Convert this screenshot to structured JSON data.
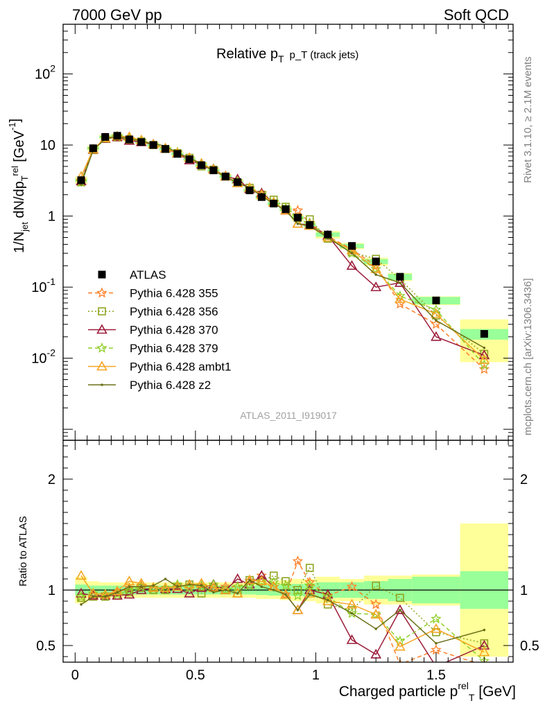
{
  "header": {
    "left": "7000 GeV pp",
    "right": "Soft QCD"
  },
  "side_labels": {
    "rivet": "Rivet 3.1.10, ≥ 2.1M events",
    "mcplots": "mcplots.cern.ch [arXiv:1306.3436]"
  },
  "reference_code": "ATLAS_2011_I919017",
  "chart_data": [
    {
      "type": "line",
      "panel": "main",
      "title": "Relative p_T (track jets)",
      "ylabel": "1/N_jet dN/dp_T^rel [GeV^-1]",
      "yscale": "log",
      "xlim": [
        -0.05,
        1.82
      ],
      "ylim": [
        0.0007,
        500
      ],
      "x": [
        0.025,
        0.075,
        0.125,
        0.175,
        0.225,
        0.275,
        0.325,
        0.375,
        0.425,
        0.475,
        0.525,
        0.575,
        0.625,
        0.675,
        0.725,
        0.775,
        0.825,
        0.875,
        0.925,
        0.975,
        1.05,
        1.15,
        1.25,
        1.35,
        1.5,
        1.7
      ],
      "yticks": [
        {
          "value": 0.01,
          "label": "10",
          "sup": "-2"
        },
        {
          "value": 0.1,
          "label": "10",
          "sup": "-1"
        },
        {
          "value": 1,
          "label": "1",
          "sup": ""
        },
        {
          "value": 10,
          "label": "10",
          "sup": ""
        },
        {
          "value": 100,
          "label": "10",
          "sup": "2"
        }
      ],
      "legend_position": "center-left",
      "series": [
        {
          "name": "ATLAS",
          "color": "#000000",
          "marker": "square-filled",
          "line": "none",
          "values": [
            3.2,
            9.0,
            13.0,
            13.5,
            12.0,
            11.0,
            10.0,
            8.8,
            7.5,
            6.3,
            5.2,
            4.4,
            3.6,
            3.0,
            2.3,
            1.85,
            1.5,
            1.25,
            0.95,
            0.75,
            0.55,
            0.38,
            0.23,
            0.14,
            0.065,
            0.022
          ]
        },
        {
          "name": "Pythia 6.428 355",
          "color": "#ff7f27",
          "marker": "star",
          "line": "dashed",
          "values": [
            3.0,
            8.6,
            12.5,
            13.2,
            12.2,
            11.4,
            10.2,
            8.9,
            7.8,
            6.5,
            5.3,
            4.5,
            3.7,
            3.1,
            2.5,
            2.1,
            1.55,
            1.2,
            1.2,
            0.8,
            0.52,
            0.34,
            0.2,
            0.058,
            0.03,
            0.007
          ]
        },
        {
          "name": "Pythia 6.428 356",
          "color": "#8fa41f",
          "marker": "square-open",
          "line": "dotted",
          "values": [
            3.0,
            8.5,
            12.2,
            12.8,
            11.8,
            11.2,
            10.0,
            8.8,
            7.7,
            6.6,
            5.0,
            4.5,
            3.6,
            2.9,
            2.5,
            2.0,
            1.7,
            1.35,
            0.95,
            0.9,
            0.48,
            0.31,
            0.25,
            0.13,
            0.04,
            0.0115
          ]
        },
        {
          "name": "Pythia 6.428 370",
          "color": "#9b1c3a",
          "marker": "triangle-open",
          "line": "solid",
          "values": [
            3.1,
            8.6,
            12.3,
            12.9,
            11.5,
            11.0,
            10.2,
            8.9,
            7.6,
            6.1,
            5.3,
            4.6,
            3.6,
            3.3,
            2.4,
            2.1,
            1.55,
            1.2,
            0.78,
            0.75,
            0.53,
            0.2,
            0.1,
            0.115,
            0.02,
            0.011
          ]
        },
        {
          "name": "Pythia 6.428 379",
          "color": "#8fcf28",
          "marker": "star",
          "line": "dashed",
          "values": [
            3.0,
            8.7,
            12.4,
            13.0,
            12.0,
            11.3,
            10.1,
            8.9,
            7.9,
            6.4,
            5.4,
            4.6,
            3.6,
            3.1,
            2.4,
            2.0,
            1.6,
            1.3,
            0.9,
            0.78,
            0.52,
            0.3,
            0.18,
            0.075,
            0.048,
            0.008
          ]
        },
        {
          "name": "Pythia 6.428 ambt1",
          "color": "#f5a623",
          "marker": "triangle-open",
          "line": "solid",
          "values": [
            3.6,
            8.7,
            12.5,
            13.3,
            13.0,
            11.7,
            10.2,
            9.0,
            7.7,
            6.6,
            5.5,
            4.5,
            3.6,
            2.9,
            2.5,
            2.0,
            1.55,
            1.2,
            0.78,
            0.73,
            0.5,
            0.33,
            0.18,
            0.068,
            0.042,
            0.0095
          ]
        },
        {
          "name": "Pythia 6.428 z2",
          "color": "#6b7016",
          "marker": "dot",
          "line": "solid",
          "values": [
            2.8,
            8.5,
            12.2,
            13.2,
            12.4,
            11.3,
            10.4,
            9.7,
            7.7,
            6.6,
            5.4,
            4.3,
            3.6,
            2.9,
            2.5,
            1.9,
            1.5,
            1.2,
            0.78,
            0.72,
            0.5,
            0.3,
            0.15,
            0.115,
            0.034,
            0.014
          ]
        }
      ]
    },
    {
      "type": "line",
      "panel": "ratio",
      "xlabel": "Charged particle p_T^rel [GeV]",
      "ylabel": "Ratio to ATLAS",
      "xlim": [
        -0.05,
        1.82
      ],
      "ylim": [
        0.35,
        2.35
      ],
      "xticks": [
        "0",
        "0.5",
        "1",
        "1.5"
      ],
      "yticks": [
        "0.5",
        "1",
        "2"
      ],
      "band_edges": [
        0.0,
        0.05,
        0.1,
        0.15,
        0.2,
        0.25,
        0.3,
        0.35,
        0.4,
        0.45,
        0.5,
        0.55,
        0.6,
        0.65,
        0.7,
        0.75,
        0.8,
        0.85,
        0.9,
        0.95,
        1.0,
        1.1,
        1.2,
        1.3,
        1.4,
        1.6,
        1.8
      ],
      "band_stat": [
        0.05,
        0.04,
        0.04,
        0.04,
        0.04,
        0.04,
        0.04,
        0.04,
        0.04,
        0.04,
        0.04,
        0.04,
        0.04,
        0.04,
        0.04,
        0.045,
        0.05,
        0.05,
        0.055,
        0.06,
        0.07,
        0.07,
        0.08,
        0.1,
        0.12,
        0.17
      ],
      "band_total": [
        0.12,
        0.08,
        0.07,
        0.07,
        0.07,
        0.07,
        0.07,
        0.07,
        0.07,
        0.07,
        0.07,
        0.07,
        0.07,
        0.07,
        0.07,
        0.08,
        0.08,
        0.09,
        0.1,
        0.1,
        0.12,
        0.1,
        0.13,
        0.13,
        0.14,
        0.6
      ],
      "band_colors": {
        "stat": "#99ff99",
        "total": "#ffff99"
      },
      "series": [
        {
          "name": "Pythia 6.428 355",
          "values": [
            0.94,
            0.95,
            0.96,
            0.98,
            1.02,
            1.04,
            1.02,
            1.01,
            1.04,
            1.03,
            1.02,
            1.02,
            1.03,
            1.03,
            1.08,
            1.13,
            1.03,
            0.96,
            1.26,
            1.07,
            0.95,
            1.03,
            0.87,
            0.33,
            0.46,
            0.32
          ]
        },
        {
          "name": "Pythia 6.428 356",
          "values": [
            0.93,
            0.94,
            0.94,
            0.95,
            0.98,
            1.02,
            1.0,
            1.0,
            1.03,
            1.05,
            0.97,
            1.02,
            1.0,
            0.97,
            1.09,
            1.08,
            1.13,
            1.08,
            1.0,
            1.2,
            0.87,
            0.82,
            1.04,
            0.93,
            0.62,
            0.52
          ]
        },
        {
          "name": "Pythia 6.428 370",
          "values": [
            0.97,
            0.95,
            0.95,
            0.95,
            0.96,
            1.0,
            1.02,
            1.01,
            1.01,
            0.97,
            1.02,
            1.05,
            1.0,
            1.1,
            1.05,
            1.13,
            1.03,
            0.96,
            0.82,
            1.0,
            0.96,
            0.55,
            0.42,
            0.82,
            0.31,
            0.5
          ]
        },
        {
          "name": "Pythia 6.428 379",
          "values": [
            0.94,
            0.97,
            0.95,
            0.96,
            1.0,
            1.03,
            1.01,
            1.01,
            1.05,
            1.02,
            1.04,
            1.05,
            1.0,
            1.03,
            1.04,
            1.08,
            1.07,
            1.04,
            0.95,
            1.04,
            0.94,
            0.79,
            0.78,
            0.54,
            0.74,
            0.36
          ]
        },
        {
          "name": "Pythia 6.428 ambt1",
          "values": [
            1.13,
            0.97,
            0.96,
            0.99,
            1.08,
            1.06,
            1.02,
            1.02,
            1.03,
            1.05,
            1.06,
            1.02,
            1.0,
            0.97,
            1.09,
            1.08,
            1.03,
            0.96,
            0.82,
            0.97,
            0.9,
            0.87,
            0.78,
            0.49,
            0.65,
            0.44
          ]
        },
        {
          "name": "Pythia 6.428 z2",
          "values": [
            0.87,
            0.94,
            0.94,
            0.98,
            1.03,
            1.03,
            1.04,
            1.1,
            1.03,
            1.05,
            1.04,
            0.98,
            1.0,
            0.97,
            1.09,
            1.03,
            1.0,
            0.96,
            0.82,
            0.96,
            0.91,
            0.79,
            0.65,
            0.82,
            0.52,
            0.64
          ]
        }
      ]
    }
  ]
}
